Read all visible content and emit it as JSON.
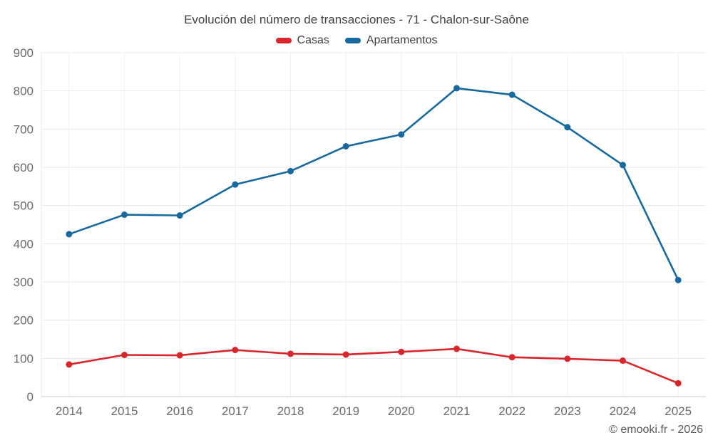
{
  "chart_data": {
    "type": "line",
    "title": "Evolución del número de transacciones - 71 - Chalon-sur-Saône",
    "categories": [
      "2014",
      "2015",
      "2016",
      "2017",
      "2018",
      "2019",
      "2020",
      "2021",
      "2022",
      "2023",
      "2024",
      "2025"
    ],
    "series": [
      {
        "name": "Casas",
        "color": "#d9262c",
        "values": [
          84,
          109,
          108,
          122,
          112,
          110,
          117,
          125,
          103,
          99,
          94,
          35
        ]
      },
      {
        "name": "Apartamentos",
        "color": "#17699e",
        "values": [
          425,
          476,
          474,
          555,
          590,
          655,
          686,
          807,
          790,
          705,
          606,
          305
        ]
      }
    ],
    "ylim": [
      0,
      900
    ],
    "y_ticks": [
      0,
      100,
      200,
      300,
      400,
      500,
      600,
      700,
      800,
      900
    ],
    "grid": true,
    "legend_position": "top",
    "watermark": "© emooki.fr - 2026"
  },
  "colors": {
    "grid_horizontal": "#e8e8e8",
    "grid_vertical": "#f0f0f0",
    "axis_line": "#c9c9c9",
    "tick_label": "#6a6a6a"
  }
}
